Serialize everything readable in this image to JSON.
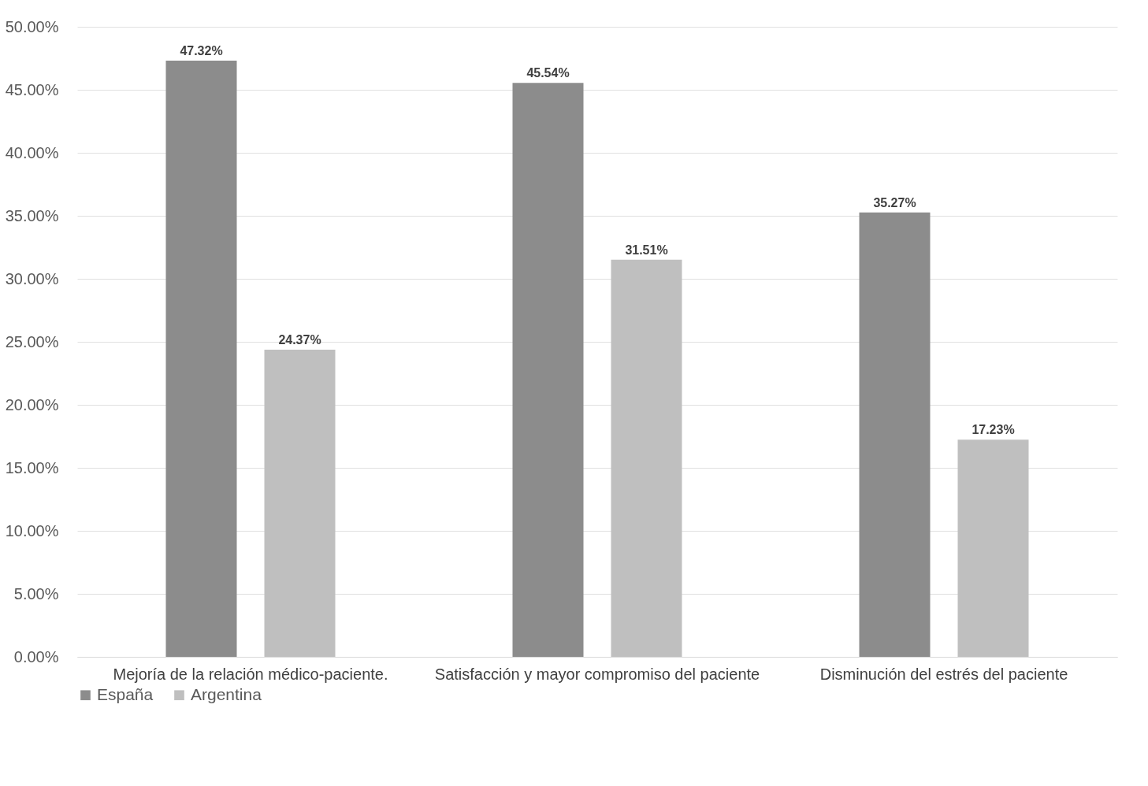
{
  "chart_data": {
    "type": "bar",
    "categories": [
      "Mejoría de la relación médico-paciente.",
      "Satisfacción y mayor compromiso del paciente",
      "Disminución  del estrés del paciente"
    ],
    "series": [
      {
        "name": "España",
        "color": "#8c8c8c",
        "values": [
          47.32,
          45.54,
          35.27
        ],
        "value_labels": [
          "47.32%",
          "45.54%",
          "35.27%"
        ]
      },
      {
        "name": "Argentina",
        "color": "#bfbfbf",
        "values": [
          24.37,
          31.51,
          17.23
        ],
        "value_labels": [
          "24.37%",
          "31.51%",
          "17.23%"
        ]
      }
    ],
    "ylim": [
      0,
      50
    ],
    "yticks": [
      {
        "value": 0,
        "label": "0.00%"
      },
      {
        "value": 5,
        "label": "5.00%"
      },
      {
        "value": 10,
        "label": "10.00%"
      },
      {
        "value": 15,
        "label": "15.00%"
      },
      {
        "value": 20,
        "label": "20.00%"
      },
      {
        "value": 25,
        "label": "25.00%"
      },
      {
        "value": 30,
        "label": "30.00%"
      },
      {
        "value": 35,
        "label": "35.00%"
      },
      {
        "value": 40,
        "label": "40.00%"
      },
      {
        "value": 45,
        "label": "45.00%"
      },
      {
        "value": 50,
        "label": "50.00%"
      }
    ],
    "grid": "y",
    "legend": "bottom"
  }
}
